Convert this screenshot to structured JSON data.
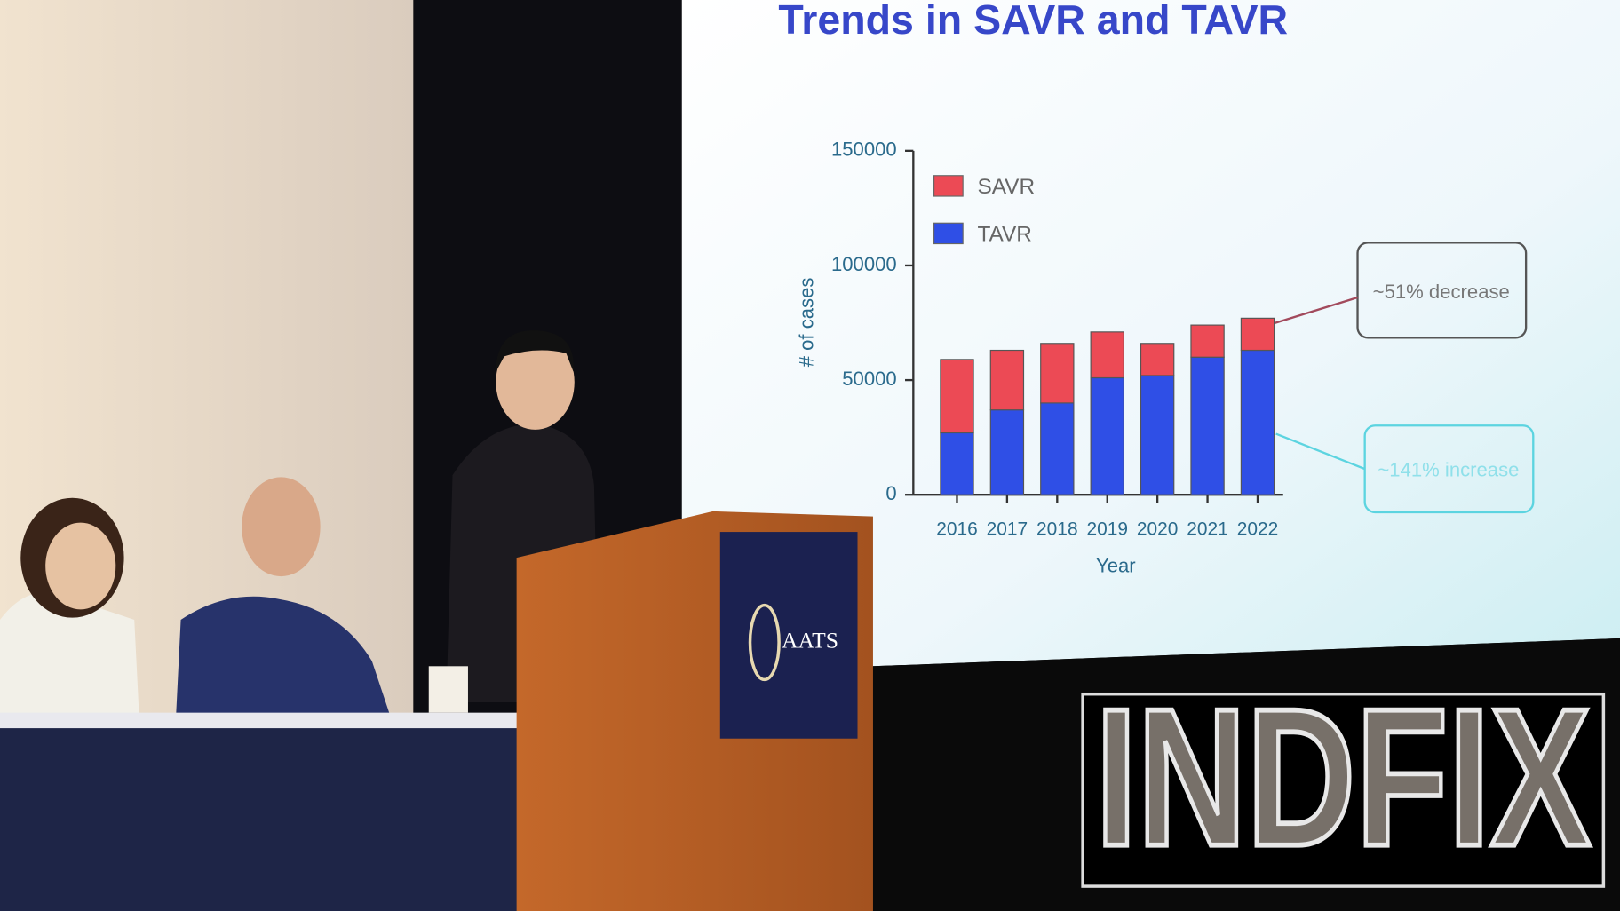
{
  "chart_data": {
    "type": "bar",
    "stacked": true,
    "title": "Trends in SAVR and TAVR",
    "x_label": "Year",
    "y_label": "# of cases",
    "categories": [
      "2016",
      "2017",
      "2018",
      "2019",
      "2020",
      "2021",
      "2022"
    ],
    "series": [
      {
        "name": "SAVR",
        "color": "#ec4a55",
        "values": [
          32000,
          26000,
          26000,
          20000,
          14000,
          14000,
          14000
        ]
      },
      {
        "name": "TAVR",
        "color": "#2f4fe6",
        "values": [
          27000,
          37000,
          40000,
          51000,
          52000,
          60000,
          63000
        ]
      }
    ],
    "ylim": [
      0,
      150000
    ],
    "yticks": [
      0,
      50000,
      100000,
      150000
    ],
    "legend": "upper left",
    "annotations": [
      "~51% decrease",
      "~141% increase"
    ]
  },
  "podium_logo": "AATS",
  "watermark": "INDFIX"
}
